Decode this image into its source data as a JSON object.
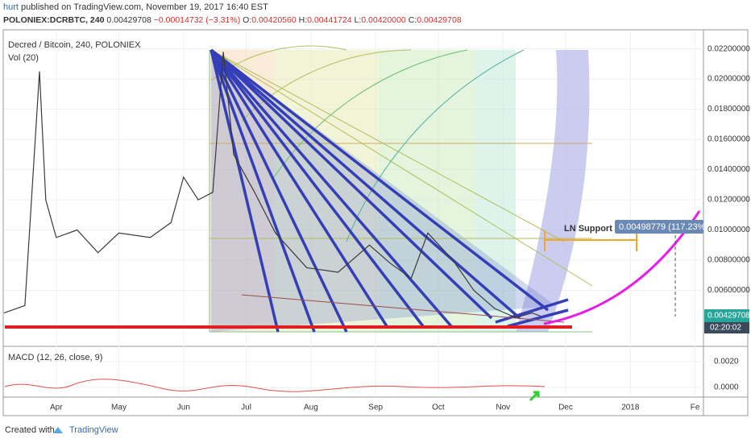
{
  "header": {
    "author": "hurt",
    "published": "published on TradingView.com, November 19, 2017 16:40 EST",
    "symbol": "POLONIEX:DCRBTC, 240",
    "last": "0.00429708",
    "change": "−0.00014732 (−3.31%)",
    "o_label": "O:",
    "o": "0.00420560",
    "h_label": "H:",
    "h": "0.00441724",
    "l_label": "L:",
    "l": "0.00420000",
    "c_label": "C:",
    "c": "0.00429708"
  },
  "chart_data": {
    "type": "line",
    "title": "Decred / Bitcoin, 240, POLONIEX",
    "volume_label": "Vol (20)",
    "x": [
      -25,
      -15,
      -8,
      -5,
      0,
      10,
      20,
      30,
      45,
      55,
      61,
      68,
      75,
      80,
      85,
      95,
      105,
      120,
      135,
      150,
      160,
      170,
      178,
      190,
      200,
      210,
      220,
      228,
      232
    ],
    "series": [
      {
        "color": "#3a3a3a",
        "values": [
          0.0045,
          0.005,
          0.0205,
          0.012,
          0.0095,
          0.01,
          0.0085,
          0.0098,
          0.0095,
          0.0105,
          0.0135,
          0.012,
          0.0125,
          0.0218,
          0.015,
          0.0125,
          0.0098,
          0.0075,
          0.0072,
          0.009,
          0.0078,
          0.0068,
          0.0098,
          0.008,
          0.006,
          0.0048,
          0.0042,
          0.0045,
          0.0043
        ]
      }
    ],
    "xlim": [
      -25,
      310
    ],
    "xticks": [
      {
        "value": 0,
        "label": "Apr"
      },
      {
        "value": 30,
        "label": "May"
      },
      {
        "value": 61,
        "label": "Jun"
      },
      {
        "value": 91,
        "label": "Jul"
      },
      {
        "value": 122,
        "label": "Aug"
      },
      {
        "value": 153,
        "label": "Sep"
      },
      {
        "value": 183,
        "label": "Oct"
      },
      {
        "value": 214,
        "label": "Nov"
      },
      {
        "value": 244,
        "label": "Dec"
      },
      {
        "value": 275,
        "label": "2018"
      },
      {
        "value": 306,
        "label": "Fe"
      }
    ],
    "ylim": [
      0.0024,
      0.0231
    ],
    "yticks": [
      {
        "value": 0.022,
        "label": "0.02200000"
      },
      {
        "value": 0.02,
        "label": "0.02000000"
      },
      {
        "value": 0.018,
        "label": "0.01800000"
      },
      {
        "value": 0.016,
        "label": "0.01600000"
      },
      {
        "value": 0.014,
        "label": "0.01400000"
      },
      {
        "value": 0.012,
        "label": "0.01200000"
      },
      {
        "value": 0.01,
        "label": "0.01000000"
      },
      {
        "value": 0.008,
        "label": "0.00800000"
      },
      {
        "value": 0.006,
        "label": "0.00600000"
      }
    ],
    "annotations": {
      "support": "LN Support",
      "target": "0.00498779 (117.23%)",
      "price": "0.00429708",
      "countdown": "02:20:02"
    },
    "macd": {
      "title": "MACD (12, 26, close, 9)",
      "ylim": [
        -0.00056,
        0.00306
      ],
      "yticks": [
        {
          "value": 0.002,
          "label": "0.0020"
        },
        {
          "value": 0,
          "label": "0.0000"
        }
      ]
    }
  },
  "footer": {
    "created": "Created with",
    "brand": "TradingView"
  }
}
